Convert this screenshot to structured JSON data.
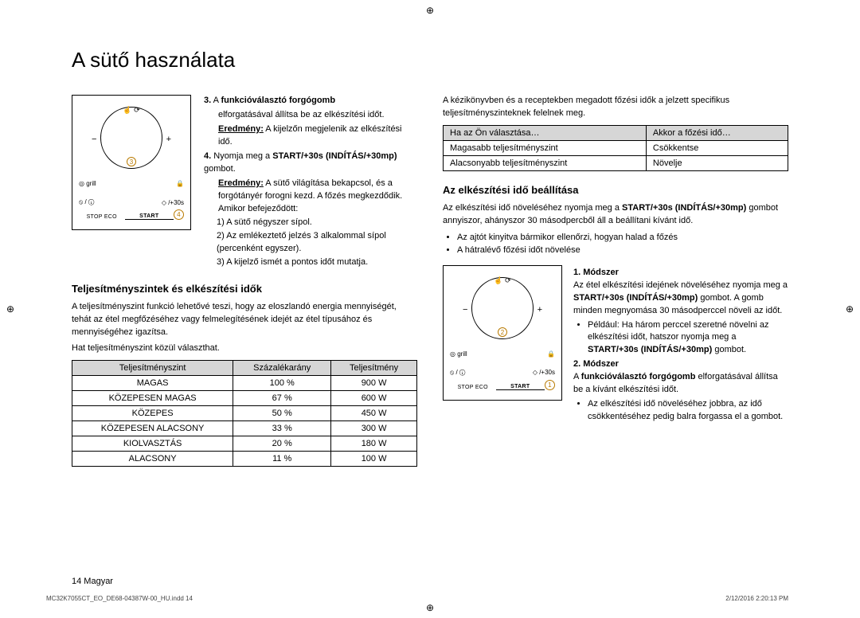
{
  "page": {
    "title": "A sütő használata",
    "page_label": "14  Magyar",
    "indd_left": "MC32K7055CT_EO_DE68-04387W-00_HU.indd   14",
    "indd_right": "2/12/2016   2:20:13 PM"
  },
  "fig1": {
    "minus": "−",
    "plus": "+",
    "top_icons": "☝ ⟳",
    "mark3": "3",
    "mark4": "4",
    "grill": "◎ grill",
    "lock": "🔒",
    "stop_row": "⦸ / ⓘ",
    "diamond": "◇ /+30s",
    "stop_lbl": "STOP   ECO",
    "start_lbl": "START"
  },
  "steps1": {
    "s3_idx": "3.",
    "s3_a": "A ",
    "s3_b": "funkcióválasztó forgógomb",
    "s3_c": "elforgatásával állítsa be az elkészítési időt.",
    "s3_res_label": "Eredmény:",
    "s3_res": " A kijelzőn megjelenik az elkészítési idő.",
    "s4_idx": "4.",
    "s4_a": "Nyomja meg a ",
    "s4_b": "START/+30s (INDÍTÁS/+30mp)",
    "s4_c": " gombot.",
    "s4_res_label": "Eredmény:",
    "s4_res": " A sütő világítása bekapcsol, és a forgótányér forogni kezd. A főzés megkezdődik. Amikor befejeződött:",
    "sub1": "1)  A sütő négyszer sípol.",
    "sub2": "2)  Az emlékeztető jelzés 3 alkalommal sípol (percenként egyszer).",
    "sub3": "3)  A kijelző ismét a pontos időt mutatja."
  },
  "powersec": {
    "heading": "Teljesítményszintek és elkészítési idők",
    "p1": "A teljesítményszint funkció lehetővé teszi, hogy az eloszlandó energia mennyiségét, tehát az étel megfőzéséhez vagy felmelegítésének idejét az étel típusához és mennyiségéhez igazítsa.",
    "p2": "Hat teljesítményszint közül választhat.",
    "cols": [
      "Teljesítményszint",
      "Százalékarány",
      "Teljesítmény"
    ],
    "rows": [
      [
        "MAGAS",
        "100 %",
        "900 W"
      ],
      [
        "KÖZEPESEN MAGAS",
        "67 %",
        "600 W"
      ],
      [
        "KÖZEPES",
        "50 %",
        "450 W"
      ],
      [
        "KÖZEPESEN ALACSONY",
        "33 %",
        "300 W"
      ],
      [
        "KIOLVASZTÁS",
        "20 %",
        "180 W"
      ],
      [
        "ALACSONY",
        "11 %",
        "100 W"
      ]
    ]
  },
  "right": {
    "intro": "A kézikönyvben és a receptekben megadott főzési idők a jelzett specifikus teljesítményszinteknek felelnek meg.",
    "tcols": [
      "Ha az Ön választása…",
      "Akkor a főzési idő…"
    ],
    "trows": [
      [
        "Magasabb teljesítményszint",
        "Csökkentse"
      ],
      [
        "Alacsonyabb teljesítményszint",
        "Növelje"
      ]
    ],
    "heading": "Az elkészítési idő beállítása",
    "p1a": "Az elkészítési idő növeléséhez nyomja meg a ",
    "p1b": "START/+30s (INDÍTÁS/+30mp)",
    "p1c": " gombot annyiszor, ahányszor 30 másodpercből áll a beállítani kívánt idő.",
    "b1": "Az ajtót kinyitva bármikor ellenőrzi, hogyan halad a főzés",
    "b2": "A hátralévő főzési időt növelése"
  },
  "fig2": {
    "minus": "−",
    "plus": "+",
    "top_icons": "☝ ⟳",
    "mark2": "2",
    "mark1": "1",
    "grill": "◎ grill",
    "lock": "🔒",
    "stop_row": "⦸ / ⓘ",
    "diamond": "◇ /+30s",
    "stop_lbl": "STOP   ECO",
    "start_lbl": "START"
  },
  "method": {
    "m1_head": "1. Módszer",
    "m1_a": "Az étel elkészítési idejének növeléséhez nyomja meg a ",
    "m1_b": "START/+30s (INDÍTÁS/+30mp)",
    "m1_c": " gombot. A gomb minden megnyomása 30 másodperccel növeli az időt.",
    "m1_bul_a": "Például: Ha három perccel szeretné növelni az elkészítési időt, hatszor nyomja meg a ",
    "m1_bul_b": "START/+30s (INDÍTÁS/+30mp)",
    "m1_bul_c": " gombot.",
    "m2_head": "2. Módszer",
    "m2_a": "A ",
    "m2_b": "funkcióválasztó forgógomb",
    "m2_c": " elforgatásával állítsa be a kívánt elkészítési időt.",
    "m2_bul": "Az elkészítési idő növeléséhez jobbra, az idő csökkentéséhez pedig balra forgassa el a gombot."
  }
}
